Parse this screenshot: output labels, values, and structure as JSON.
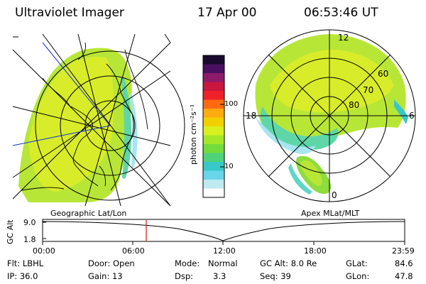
{
  "header": {
    "title": "Ultraviolet Imager",
    "date": "17 Apr 00",
    "time": "06:53:46 UT"
  },
  "colorbar": {
    "unit_label": "photon cm⁻²s⁻¹",
    "ticks": [
      "100",
      "10"
    ],
    "colors": [
      "#1a0a2e",
      "#4a1060",
      "#8e1a6a",
      "#c8163e",
      "#f0202a",
      "#ff6a10",
      "#ffaa10",
      "#f2d000",
      "#d8f020",
      "#a4e628",
      "#72dc3a",
      "#4fd27a",
      "#38c8c8",
      "#6ad6ea",
      "#bfeaf2",
      "#ffffff"
    ]
  },
  "polar": {
    "mlt_labels": {
      "top": "12",
      "left": "18",
      "right": "6",
      "bottom": "0"
    },
    "lat_labels": [
      "60",
      "70",
      "80"
    ]
  },
  "altitude": {
    "geo_label": "Geographic Lat/Lon",
    "apex_label": "Apex MLat/MLT",
    "axis_label": "GC Alt",
    "y_ticks": [
      "9.0",
      "1.8"
    ],
    "x_ticks": [
      "00:00",
      "06:00",
      "12:00",
      "18:00",
      "23:59"
    ],
    "marker_time": "06:53"
  },
  "footer": {
    "flt": "Flt: LBHL",
    "ip": "IP: 36.0",
    "door": "Door: Open",
    "gain": "Gain: 13",
    "mode_label": "Mode:",
    "mode_value": "Normal",
    "dsp_label": "Dsp:",
    "dsp_value": "3.3",
    "gcalt": "GC Alt: 8.0 Re",
    "seq": "Seq: 39",
    "glat_label": "GLat:",
    "glat_value": "84.6",
    "glon_label": "GLon:",
    "glon_value": "47.8"
  }
}
